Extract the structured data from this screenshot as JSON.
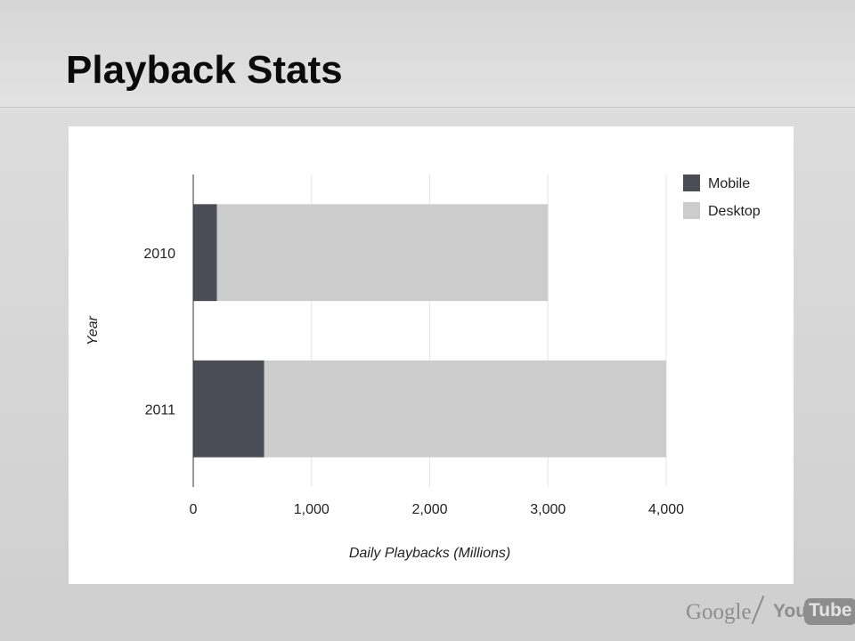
{
  "slide": {
    "title": "Playback Stats"
  },
  "chart_data": {
    "type": "bar",
    "orientation": "horizontal",
    "stacked": true,
    "categories": [
      "2010",
      "2011"
    ],
    "series": [
      {
        "name": "Mobile",
        "values": [
          200,
          600
        ],
        "color": "#4a4d55"
      },
      {
        "name": "Desktop",
        "values": [
          2800,
          3400
        ],
        "color": "#cccccc"
      }
    ],
    "xlabel": "Daily Playbacks (Millions)",
    "ylabel": "Year",
    "xlim": [
      0,
      4000
    ],
    "xticks": [
      "0",
      "1,000",
      "2,000",
      "3,000",
      "4,000"
    ],
    "xtick_values": [
      0,
      1000,
      2000,
      3000,
      4000
    ],
    "grid": true,
    "legend_position": "top-right"
  },
  "brand": {
    "google": "Google",
    "you": "You",
    "tube": "Tube"
  },
  "colors": {
    "grid": "#e6e6e6",
    "axis": "#333333",
    "text": "#222222"
  }
}
